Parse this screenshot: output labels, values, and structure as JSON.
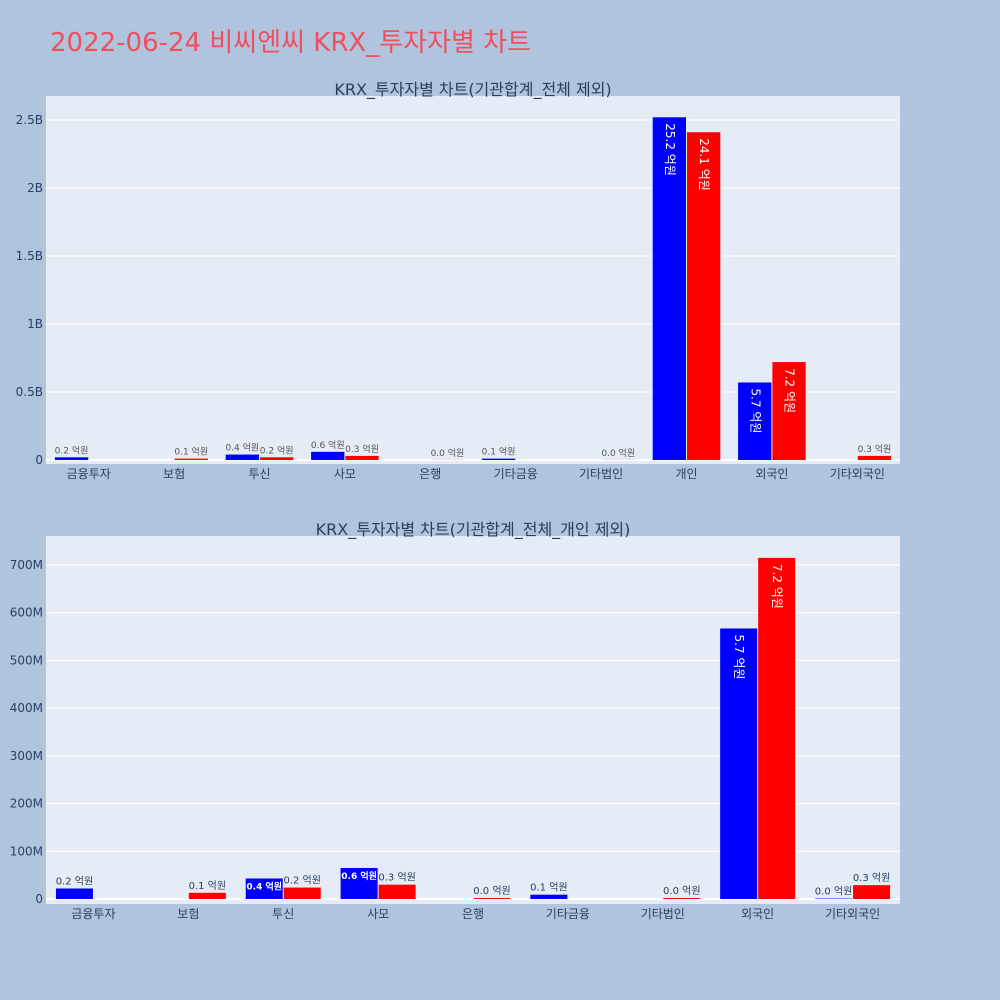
{
  "title": "2022-06-24 비씨엔씨 KRX_투자자별 차트",
  "colors": {
    "buy": "#0000ff",
    "sell": "#ff0000",
    "plot_bg": "#e5ecf6",
    "page_bg": "#b0c4de",
    "title": "#ef4f5f"
  },
  "chart_data": [
    {
      "type": "bar",
      "title": "KRX_투자자별 차트(기관합계_전체 제외)",
      "categories": [
        "금융투자",
        "보험",
        "투신",
        "사모",
        "은행",
        "기타금융",
        "기타법인",
        "개인",
        "외국인",
        "기타외국인"
      ],
      "ylim": [
        0,
        2680000000
      ],
      "yticks": [
        0,
        500000000,
        1000000000,
        1500000000,
        2000000000,
        2500000000
      ],
      "ytick_labels": [
        "0",
        "0.5B",
        "1B",
        "1.5B",
        "2B",
        "2.5B"
      ],
      "series": [
        {
          "values": [
            20000000,
            0,
            40000000,
            60000000,
            0,
            10000000,
            0,
            2520000000,
            570000000,
            0
          ],
          "labels": [
            "0.2 억원",
            "",
            "0.4 억원",
            "0.6 억원",
            "",
            "0.1 억원",
            "",
            "25.2 억원",
            "5.7 억원",
            ""
          ]
        },
        {
          "values": [
            0,
            10000000,
            20000000,
            30000000,
            1000000,
            0,
            1000000,
            2410000000,
            720000000,
            30000000
          ],
          "labels": [
            "",
            "0.1 억원",
            "0.2 억원",
            "0.3 억원",
            "0.0 억원",
            "",
            "0.0 억원",
            "24.1 억원",
            "7.2 억원",
            "0.3 억원"
          ]
        }
      ]
    },
    {
      "type": "bar",
      "title": "KRX_투자자별 차트(기관합계_전체_개인 제외)",
      "categories": [
        "금융투자",
        "보험",
        "투신",
        "사모",
        "은행",
        "기타금융",
        "기타법인",
        "외국인",
        "기타외국인"
      ],
      "ylim": [
        0,
        760000000
      ],
      "yticks": [
        0,
        100000000,
        200000000,
        300000000,
        400000000,
        500000000,
        600000000,
        700000000
      ],
      "ytick_labels": [
        "0",
        "100M",
        "200M",
        "300M",
        "400M",
        "500M",
        "600M",
        "700M"
      ],
      "series": [
        {
          "values": [
            22000000,
            0,
            43000000,
            65000000,
            0,
            9000000,
            0,
            567000000,
            1000000
          ],
          "labels": [
            "0.2 억원",
            "",
            "0.4 억원",
            "0.6 억원",
            "",
            "0.1 억원",
            "",
            "5.7 억원",
            "0.0 억원"
          ]
        },
        {
          "values": [
            0,
            13000000,
            24000000,
            30000000,
            2000000,
            0,
            2000000,
            715000000,
            29000000
          ],
          "labels": [
            "",
            "0.1 억원",
            "0.2 억원",
            "0.3 억원",
            "0.0 억원",
            "",
            "0.0 억원",
            "7.2 억원",
            "0.3 억원"
          ]
        }
      ]
    }
  ]
}
